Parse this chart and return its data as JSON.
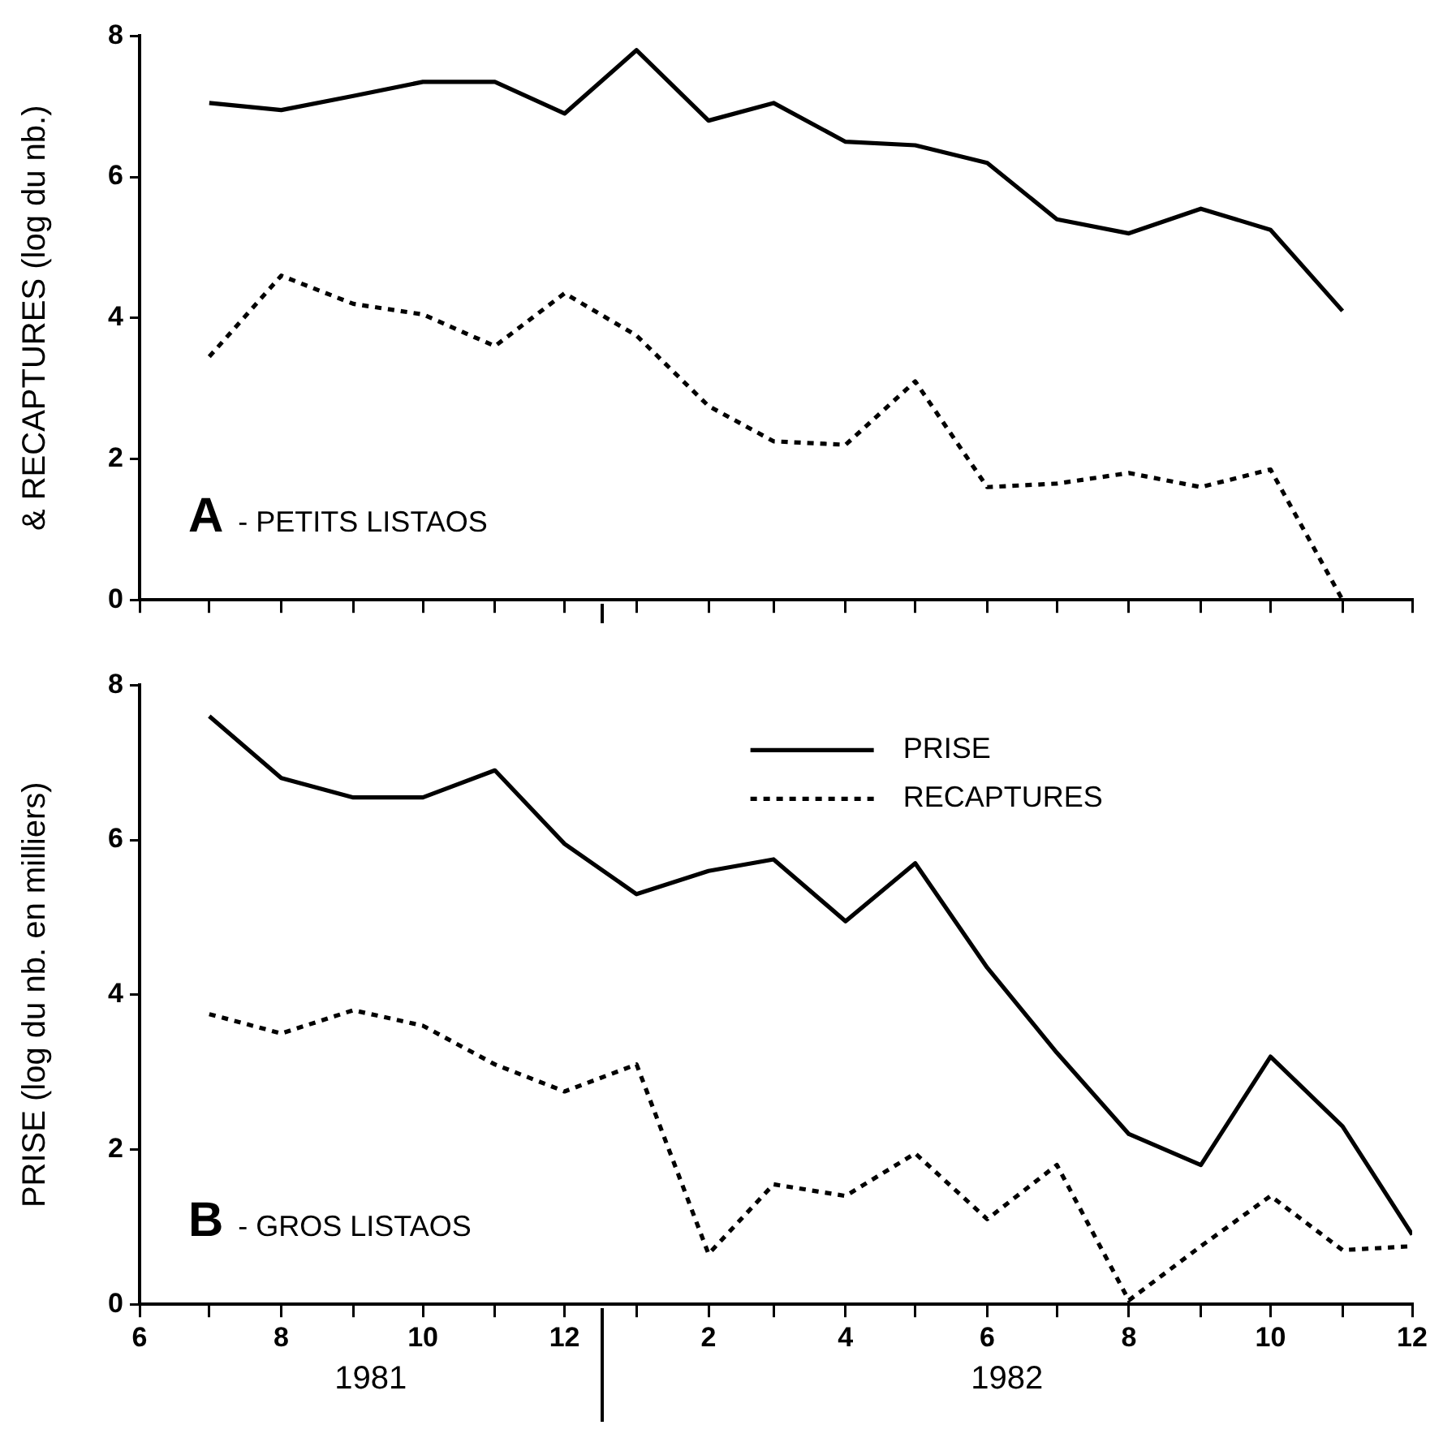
{
  "chart_data": [
    {
      "type": "line",
      "ylabel": "& RECAPTURES (log du nb.)",
      "annotations": [
        "A - PETITS LISTAOS"
      ],
      "x": [
        "1981-07",
        "1981-08",
        "1981-09",
        "1981-10",
        "1981-11",
        "1981-12",
        "1982-01",
        "1982-02",
        "1982-03",
        "1982-04",
        "1982-05",
        "1982-06",
        "1982-07",
        "1982-08",
        "1982-09",
        "1982-10",
        "1982-11"
      ],
      "series": [
        {
          "color": "#000000",
          "line_style": "solid",
          "values": [
            7.05,
            6.95,
            7.15,
            7.35,
            7.35,
            6.9,
            7.8,
            6.8,
            7.05,
            6.5,
            6.45,
            6.2,
            5.4,
            5.2,
            5.55,
            5.25,
            4.1
          ]
        },
        {
          "color": "#000000",
          "line_style": "dotted",
          "values": [
            3.45,
            4.6,
            4.2,
            4.05,
            3.6,
            4.35,
            3.75,
            2.75,
            2.25,
            2.2,
            3.1,
            1.6,
            1.65,
            1.8,
            1.6,
            1.85,
            0
          ]
        }
      ],
      "xlim": [
        "1981-06",
        "1982-12"
      ],
      "xticks": [
        {
          "value": "1981-06",
          "label": null
        },
        {
          "value": "1981-07",
          "label": null
        },
        {
          "value": "1981-08",
          "label": null
        },
        {
          "value": "1981-09",
          "label": null
        },
        {
          "value": "1981-10",
          "label": null
        },
        {
          "value": "1981-11",
          "label": null
        },
        {
          "value": "1981-12",
          "label": null
        },
        {
          "value": "1982-01",
          "label": null
        },
        {
          "value": "1982-02",
          "label": null
        },
        {
          "value": "1982-03",
          "label": null
        },
        {
          "value": "1982-04",
          "label": null
        },
        {
          "value": "1982-05",
          "label": null
        },
        {
          "value": "1982-06",
          "label": null
        },
        {
          "value": "1982-07",
          "label": null
        },
        {
          "value": "1982-08",
          "label": null
        },
        {
          "value": "1982-09",
          "label": null
        },
        {
          "value": "1982-10",
          "label": null
        },
        {
          "value": "1982-11",
          "label": null
        },
        {
          "value": "1982-12",
          "label": null
        }
      ],
      "ylim": [
        0,
        8
      ],
      "yticks": [
        0,
        2,
        4,
        6,
        8
      ],
      "tick_labels": "y",
      "grid": false,
      "legend": false,
      "marker": "none"
    },
    {
      "type": "line",
      "ylabel": "PRISE (log du nb. en milliers)",
      "annotations": [
        "B - GROS LISTAOS",
        "1981",
        "1982"
      ],
      "x": [
        "1981-07",
        "1981-08",
        "1981-09",
        "1981-10",
        "1981-11",
        "1981-12",
        "1982-01",
        "1982-02",
        "1982-03",
        "1982-04",
        "1982-05",
        "1982-06",
        "1982-07",
        "1982-08",
        "1982-09",
        "1982-10",
        "1982-11",
        "1982-12"
      ],
      "series": [
        {
          "name": "PRISE",
          "color": "#000000",
          "line_style": "solid",
          "values": [
            7.6,
            6.8,
            6.55,
            6.55,
            6.9,
            5.95,
            5.3,
            5.6,
            5.75,
            4.95,
            5.7,
            4.35,
            3.25,
            2.2,
            1.8,
            3.2,
            2.3,
            0.9
          ]
        },
        {
          "name": "RECAPTURES",
          "color": "#000000",
          "line_style": "dotted",
          "values": [
            3.75,
            3.5,
            3.8,
            3.6,
            3.1,
            2.75,
            3.1,
            0.65,
            1.55,
            1.4,
            1.95,
            1.1,
            1.8,
            0.05,
            0.75,
            1.4,
            0.7,
            0.75
          ]
        }
      ],
      "xlim": [
        "1981-06",
        "1982-12"
      ],
      "xticks": [
        {
          "value": "1981-06",
          "label": "6"
        },
        {
          "value": "1981-07",
          "label": null
        },
        {
          "value": "1981-08",
          "label": "8"
        },
        {
          "value": "1981-09",
          "label": null
        },
        {
          "value": "1981-10",
          "label": "10"
        },
        {
          "value": "1981-11",
          "label": null
        },
        {
          "value": "1981-12",
          "label": "12"
        },
        {
          "value": "1982-01",
          "label": null
        },
        {
          "value": "1982-02",
          "label": "2"
        },
        {
          "value": "1982-03",
          "label": null
        },
        {
          "value": "1982-04",
          "label": "4"
        },
        {
          "value": "1982-05",
          "label": null
        },
        {
          "value": "1982-06",
          "label": "6"
        },
        {
          "value": "1982-07",
          "label": null
        },
        {
          "value": "1982-08",
          "label": "8"
        },
        {
          "value": "1982-09",
          "label": null
        },
        {
          "value": "1982-10",
          "label": "10"
        },
        {
          "value": "1982-11",
          "label": null
        },
        {
          "value": "1982-12",
          "label": "12"
        }
      ],
      "ylim": [
        0,
        8
      ],
      "yticks": [
        0,
        2,
        4,
        6,
        8
      ],
      "grid": false,
      "legend": "top right",
      "marker": "none"
    }
  ]
}
